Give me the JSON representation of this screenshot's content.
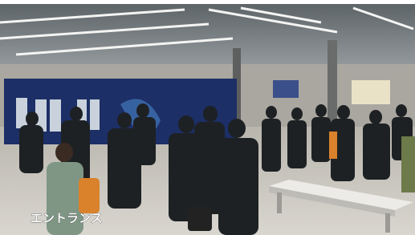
{
  "caption": "エントランス"
}
